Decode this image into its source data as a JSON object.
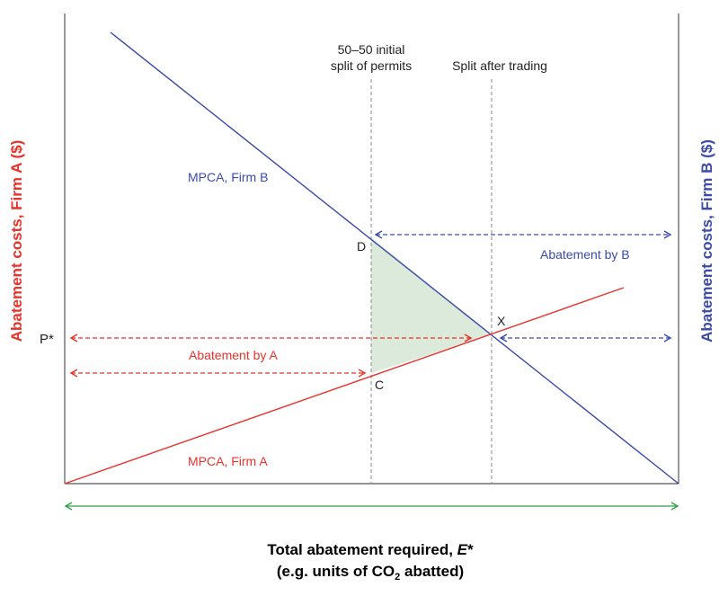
{
  "colors": {
    "firm_a": "#e8322a",
    "firm_b": "#3b4ba8",
    "total": "#2ea043",
    "shade": "#dceadb",
    "axis": "#555555",
    "guide": "#888888"
  },
  "axes": {
    "left_title": "Abatement costs, Firm A ($)",
    "right_title": "Abatement costs, Firm B ($)",
    "x_title_line1_pre": "Total abatement required, ",
    "x_title_line1_var": "E",
    "x_title_line1_post": "*",
    "x_title_line2_pre": "(e.g. units of CO",
    "x_title_line2_sub": "2",
    "x_title_line2_post": " abatted)",
    "p_star": "P*"
  },
  "curves": {
    "mpca_a": "MPCA, Firm A",
    "mpca_b": "MPCA, Firm B"
  },
  "guides": {
    "initial_line1": "50–50 initial",
    "initial_line2": "split of permits",
    "after": "Split after trading"
  },
  "points": {
    "d": "D",
    "c": "C",
    "x": "X"
  },
  "arrows": {
    "abatement_a": "Abatement by A",
    "abatement_b": "Abatement by B"
  }
}
